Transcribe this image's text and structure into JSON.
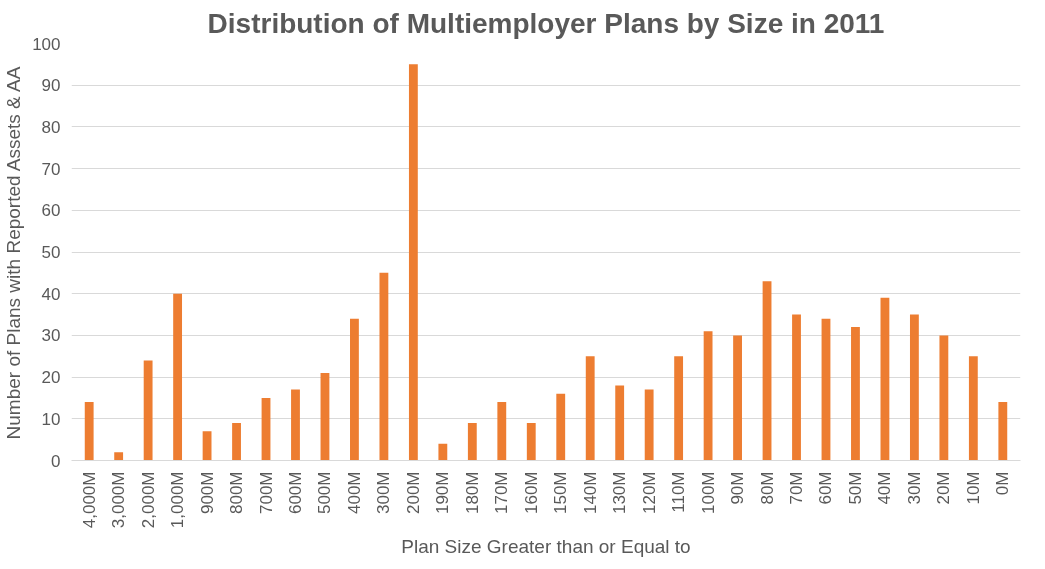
{
  "chart_data": {
    "type": "bar",
    "title": "Distribution of Multiemployer Plans by Size in 2011",
    "xlabel": "Plan Size Greater than or Equal to",
    "ylabel": "Number of Plans with Reported Assets & AA",
    "categories": [
      "4,000M",
      "3,000M",
      "2,000M",
      "1,000M",
      "900M",
      "800M",
      "700M",
      "600M",
      "500M",
      "400M",
      "300M",
      "200M",
      "190M",
      "180M",
      "170M",
      "160M",
      "150M",
      "140M",
      "130M",
      "120M",
      "110M",
      "100M",
      "90M",
      "80M",
      "70M",
      "60M",
      "50M",
      "40M",
      "30M",
      "20M",
      "10M",
      "0M"
    ],
    "values": [
      14,
      2,
      24,
      40,
      7,
      9,
      15,
      17,
      21,
      34,
      45,
      95,
      4,
      9,
      14,
      9,
      16,
      25,
      18,
      17,
      25,
      31,
      30,
      43,
      35,
      34,
      32,
      39,
      35,
      30,
      25,
      14
    ],
    "color": "#ed7d31",
    "ylim": [
      0,
      100
    ],
    "yticks": [
      0,
      10,
      20,
      30,
      40,
      50,
      60,
      70,
      80,
      90,
      100
    ],
    "grid": "y"
  }
}
